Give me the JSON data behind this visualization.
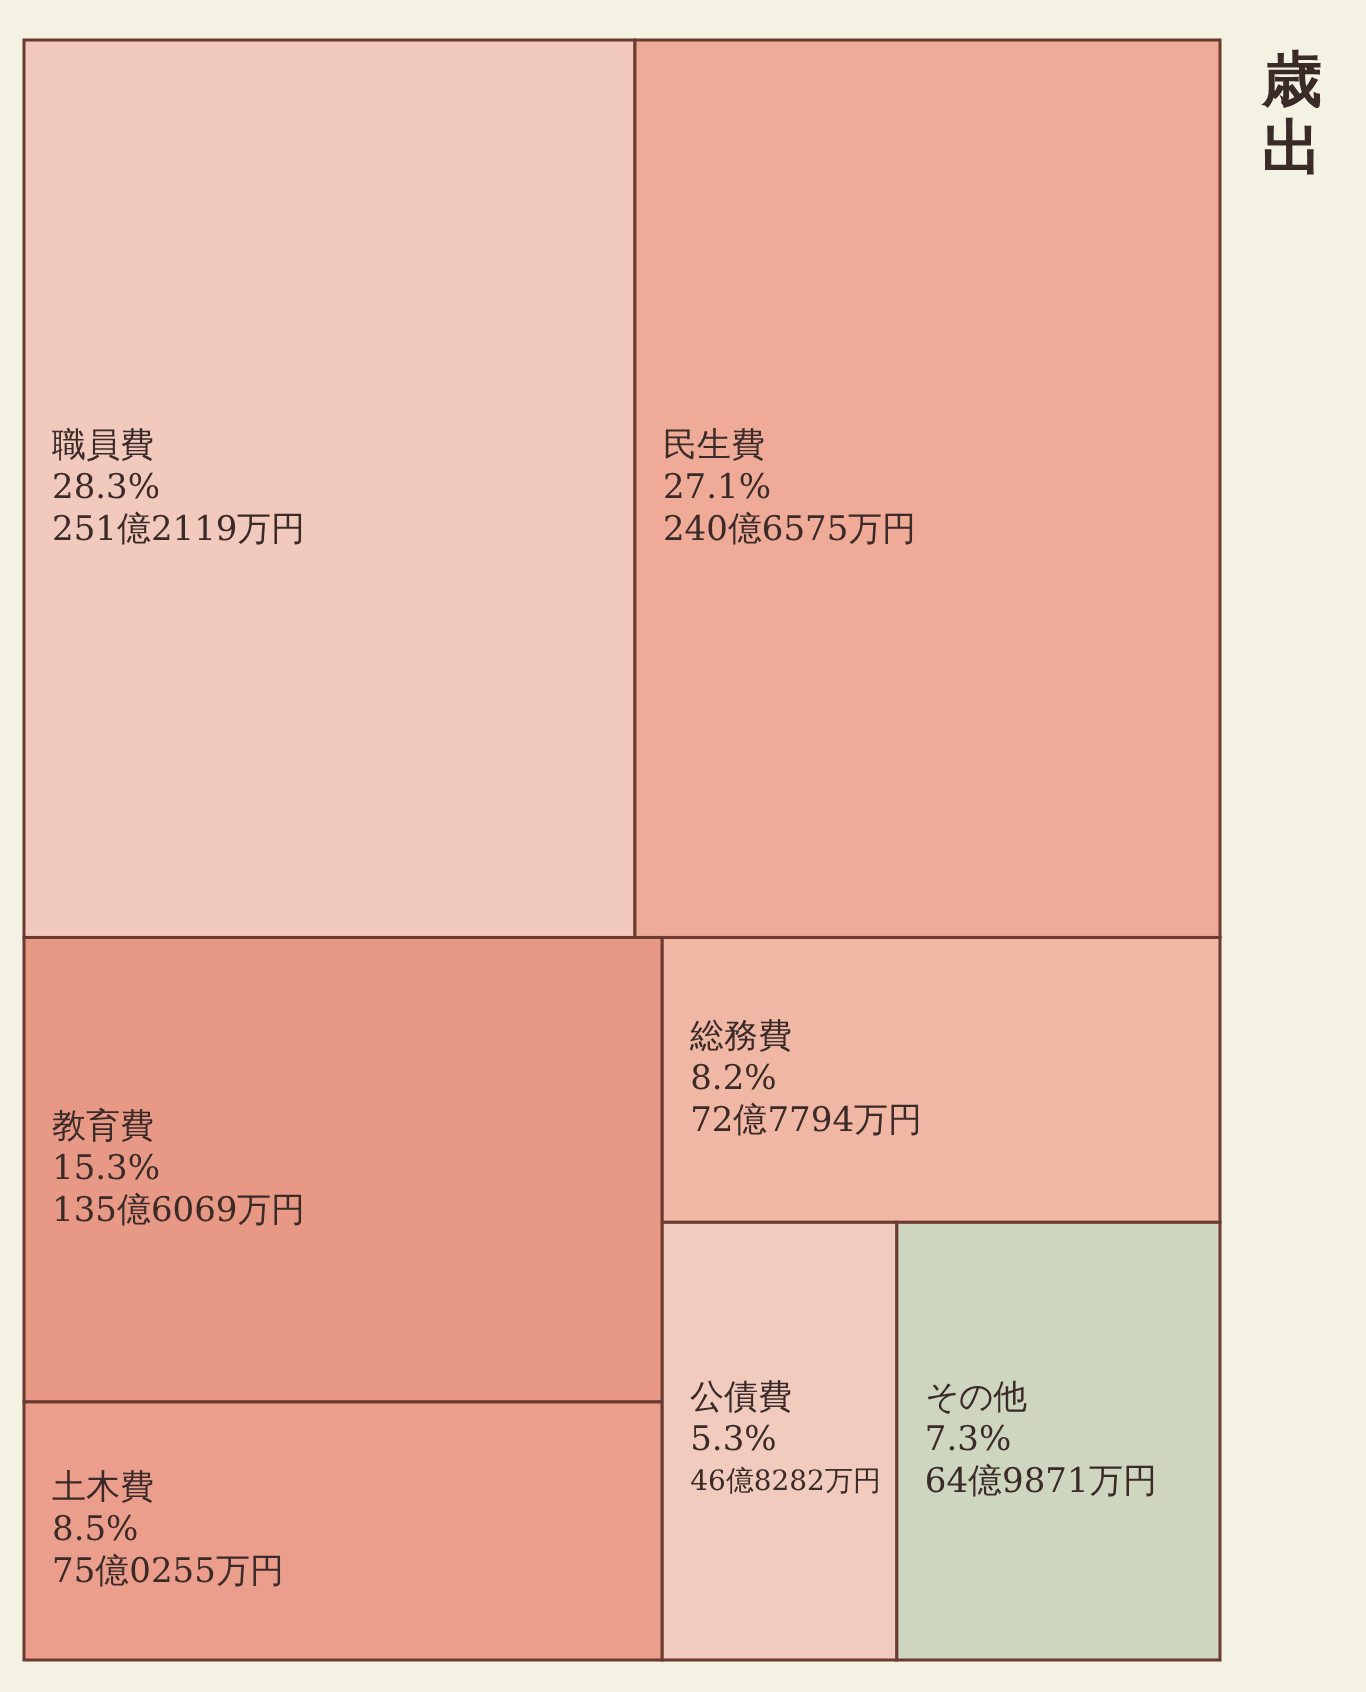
{
  "chart_data": {
    "type": "other",
    "title": "歳出",
    "categories": [
      "職員費",
      "民生費",
      "教育費",
      "土木費",
      "総務費",
      "公債費",
      "その他"
    ],
    "values": [
      28.3,
      27.1,
      15.3,
      8.5,
      8.2,
      5.3,
      7.3
    ],
    "value_labels": [
      "28.3%",
      "27.1%",
      "15.3%",
      "8.5%",
      "8.2%",
      "5.3%",
      "7.3%"
    ],
    "annotations": [
      "251億2119万円",
      "240億6575万円",
      "135億6069万円",
      "75億0255万円",
      "72億7794万円",
      "46億8282万円",
      "64億9871万円"
    ],
    "colors": [
      "#f2c9bd",
      "#efab98",
      "#e89985",
      "#eb9e8c",
      "#f0b8a4",
      "#f1ccbe",
      "#cfd6bf"
    ]
  }
}
